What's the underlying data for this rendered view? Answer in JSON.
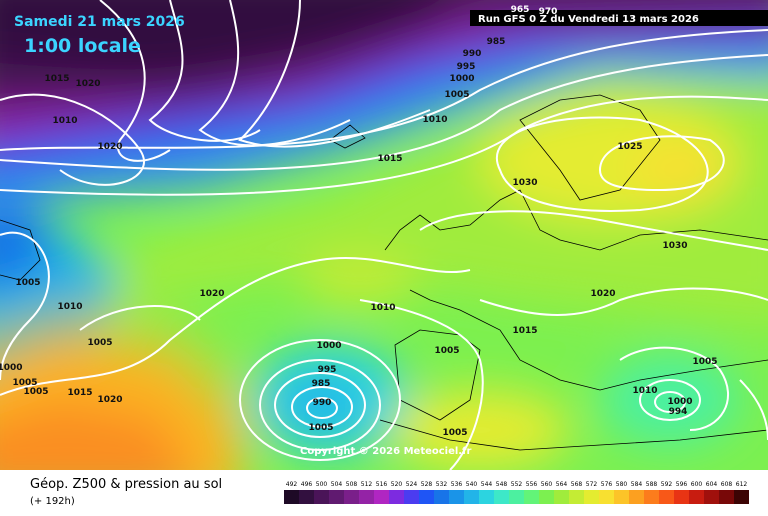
{
  "header": {
    "date": "Samedi 21 mars 2026",
    "time": "1:00 locale",
    "run": "Run GFS 0 Z du Vendredi 13 mars 2026"
  },
  "isobar_labels": [
    965,
    970,
    985,
    990,
    995,
    1000,
    1005,
    1010,
    1015,
    1015,
    1020,
    1010,
    1020,
    1025,
    1030,
    1030,
    1005,
    1010,
    1020,
    1005,
    1010,
    1020,
    1015,
    1005,
    1000,
    995,
    985,
    990,
    1005,
    1000,
    1005,
    1005,
    1015,
    1020,
    1005,
    1010,
    1000,
    994,
    1005
  ],
  "copyright": "Copyright © 2026 Meteociel.fr",
  "footer": {
    "title": "Géop. Z500 & pression au sol",
    "subtitle": "(+ 192h)"
  },
  "legend": {
    "levels": [
      492,
      496,
      500,
      504,
      508,
      512,
      516,
      520,
      524,
      528,
      532,
      536,
      540,
      544,
      548,
      552,
      556,
      560,
      564,
      568,
      572,
      576,
      580,
      584,
      588,
      592,
      596,
      600,
      604,
      608,
      612
    ],
    "colors": [
      "#1e0a26",
      "#32103f",
      "#4a1458",
      "#601a70",
      "#7a1f8a",
      "#9423a6",
      "#b026c2",
      "#7d2be0",
      "#4b3cf0",
      "#1f55f5",
      "#1874e8",
      "#1a94e8",
      "#22b4e8",
      "#2cd4e0",
      "#3de8c8",
      "#4cf0a0",
      "#62f478",
      "#7cf050",
      "#a0ec3c",
      "#c4ec34",
      "#e4ec30",
      "#f8e030",
      "#fcc428",
      "#fca020",
      "#fc7c1c",
      "#f85818",
      "#e83414",
      "#c81c10",
      "#a0100c",
      "#780808",
      "#3c0404"
    ]
  }
}
